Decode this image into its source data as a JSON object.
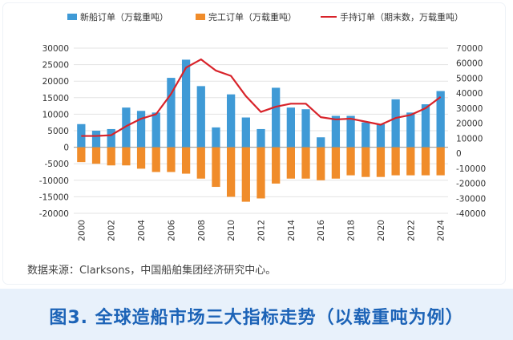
{
  "chart_data": {
    "type": "bar",
    "legend": {
      "new_orders": "新船订单（万载重吨）",
      "completions": "完工订单（万载重吨）",
      "orderbook": "手持订单（期末数，万载重吨）"
    },
    "x": [
      2000,
      2001,
      2002,
      2003,
      2004,
      2005,
      2006,
      2007,
      2008,
      2009,
      2010,
      2011,
      2012,
      2013,
      2014,
      2015,
      2016,
      2017,
      2018,
      2019,
      2020,
      2021,
      2022,
      2023,
      2024
    ],
    "x_tick_labels": [
      "2000",
      "2002",
      "2004",
      "2006",
      "2008",
      "2010",
      "2012",
      "2014",
      "2016",
      "2018",
      "2020",
      "2022",
      "2024"
    ],
    "series": [
      {
        "key": "new_orders",
        "type": "bar",
        "axis": "left",
        "color": "#3f9ad6",
        "values": [
          7000,
          5000,
          5500,
          12000,
          11000,
          10500,
          21000,
          26500,
          18500,
          6000,
          16000,
          9000,
          5500,
          18000,
          12000,
          11500,
          3000,
          9500,
          9500,
          7500,
          7000,
          14500,
          10500,
          13000,
          17000
        ]
      },
      {
        "key": "completions",
        "type": "bar",
        "axis": "left",
        "color": "#f08c2a",
        "values": [
          -4500,
          -5000,
          -5500,
          -5500,
          -6500,
          -7500,
          -7500,
          -8000,
          -9500,
          -12000,
          -15000,
          -16500,
          -15500,
          -11000,
          -9500,
          -9500,
          -10000,
          -9500,
          -8500,
          -9000,
          -9000,
          -8500,
          -8500,
          -8500,
          -8500
        ]
      },
      {
        "key": "orderbook",
        "type": "line",
        "axis": "right",
        "color": "#d8232a",
        "values": [
          11500,
          11500,
          12000,
          18000,
          23000,
          26000,
          39500,
          57000,
          62500,
          55000,
          51500,
          38000,
          27500,
          31000,
          33000,
          33000,
          24000,
          22500,
          23000,
          21000,
          19000,
          23500,
          25500,
          30000,
          37500
        ]
      }
    ],
    "left_axis": {
      "ylim": [
        -20000,
        30000
      ],
      "ticks": [
        30000,
        25000,
        20000,
        15000,
        10000,
        5000,
        0,
        -5000,
        -10000,
        -15000,
        -20000
      ]
    },
    "right_axis": {
      "ylim": [
        -40000,
        70000
      ],
      "ticks": [
        70000,
        60000,
        50000,
        40000,
        30000,
        20000,
        10000,
        0,
        -10000,
        -20000,
        -30000,
        -40000
      ]
    },
    "grid": true,
    "legend_position": "top"
  },
  "source_note": "数据来源：Clarksons，中国船舶集团经济研究中心。",
  "caption": "图3. 全球造船市场三大指标走势（以载重吨为例）"
}
